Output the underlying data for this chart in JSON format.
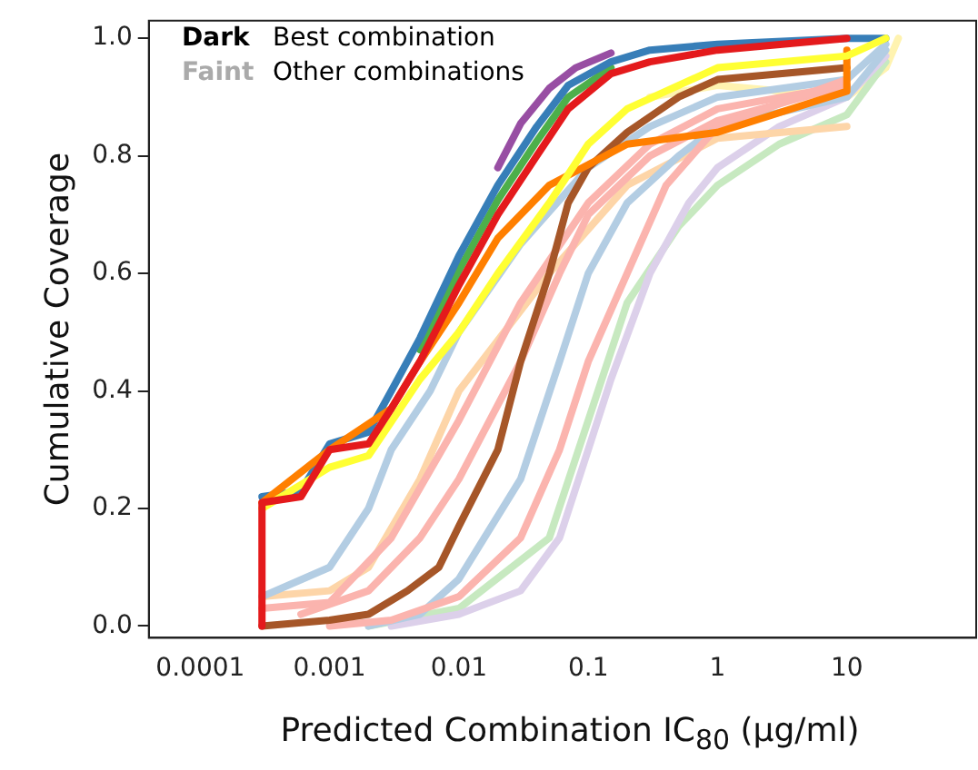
{
  "chart_data": {
    "type": "line",
    "xlabel": "Predicted Combination IC$_{80}$ (μg/ml)",
    "ylabel": "Cumulative Coverage",
    "log": "x",
    "xlim": [
      4e-05,
      100
    ],
    "ylim": [
      -0.02,
      1.03
    ],
    "xticks": [
      0.0001,
      0.001,
      0.01,
      0.1,
      1,
      10
    ],
    "yticks": [
      {
        "value": 0,
        "label": "0.0"
      },
      {
        "value": 0.2,
        "label": "0.2"
      },
      {
        "value": 0.4,
        "label": "0.4"
      },
      {
        "value": 0.6,
        "label": "0.6"
      },
      {
        "value": 0.8,
        "label": "0.8"
      },
      {
        "value": 1,
        "label": "1.0"
      }
    ],
    "grid": false,
    "legend": false,
    "marker": "none",
    "line_style": "solid",
    "annotations": [
      "Dark",
      "Best combination",
      "Faint",
      "Other combinations"
    ],
    "series": [
      {
        "color": "#fff3b0",
        "x": [
          0.3,
          1,
          10,
          20,
          25
        ],
        "values": [
          0.9,
          0.92,
          0.9,
          0.95,
          1.0
        ]
      },
      {
        "color": "#c7e9c0",
        "x": [
          0.002,
          0.01,
          0.05,
          0.1,
          0.2,
          0.5,
          1,
          3,
          10,
          20
        ],
        "values": [
          0,
          0.03,
          0.15,
          0.35,
          0.55,
          0.68,
          0.75,
          0.82,
          0.87,
          0.96
        ]
      },
      {
        "color": "#dcd0ea",
        "x": [
          0.003,
          0.01,
          0.03,
          0.06,
          0.1,
          0.15,
          0.3,
          0.6,
          1,
          3,
          10,
          20
        ],
        "values": [
          0,
          0.02,
          0.06,
          0.15,
          0.3,
          0.42,
          0.6,
          0.72,
          0.78,
          0.85,
          0.9,
          0.97
        ]
      },
      {
        "color": "#fdd5a8",
        "x": [
          0.0003,
          0.001,
          0.002,
          0.005,
          0.01,
          0.05,
          0.2,
          1,
          10
        ],
        "values": [
          0.05,
          0.06,
          0.1,
          0.25,
          0.4,
          0.6,
          0.75,
          0.83,
          0.85
        ]
      },
      {
        "color": "#b3cde3",
        "x": [
          0.0003,
          0.001,
          0.002,
          0.003,
          0.006,
          0.01,
          0.03,
          0.1,
          0.3,
          1,
          10,
          20
        ],
        "values": [
          0.05,
          0.1,
          0.2,
          0.3,
          0.4,
          0.5,
          0.65,
          0.78,
          0.85,
          0.9,
          0.93,
          0.99
        ]
      },
      {
        "color": "#b3cde3",
        "x": [
          0.002,
          0.005,
          0.01,
          0.03,
          0.06,
          0.1,
          0.2,
          0.5,
          1,
          10,
          20
        ],
        "values": [
          0,
          0.02,
          0.08,
          0.25,
          0.45,
          0.6,
          0.72,
          0.8,
          0.85,
          0.9,
          0.98
        ]
      },
      {
        "color": "#fbb4ae",
        "x": [
          0.0003,
          0.001,
          0.003,
          0.01,
          0.03,
          0.1,
          0.3,
          1,
          10
        ],
        "values": [
          0.03,
          0.04,
          0.15,
          0.35,
          0.55,
          0.72,
          0.82,
          0.88,
          0.92
        ]
      },
      {
        "color": "#fbb4ae",
        "x": [
          0.0006,
          0.002,
          0.005,
          0.01,
          0.03,
          0.06,
          0.1,
          0.3,
          1,
          10
        ],
        "values": [
          0.02,
          0.06,
          0.15,
          0.25,
          0.45,
          0.6,
          0.7,
          0.8,
          0.86,
          0.92
        ]
      },
      {
        "color": "#fbb4ae",
        "x": [
          0.001,
          0.003,
          0.01,
          0.03,
          0.06,
          0.1,
          0.2,
          0.4,
          1,
          10
        ],
        "values": [
          0,
          0.01,
          0.05,
          0.15,
          0.3,
          0.45,
          0.6,
          0.75,
          0.85,
          0.93
        ]
      },
      {
        "color": "#984ea3",
        "x": [
          0.02,
          0.03,
          0.05,
          0.08,
          0.15
        ],
        "values": [
          0.78,
          0.855,
          0.915,
          0.95,
          0.975
        ]
      },
      {
        "color": "#4daf4a",
        "x": [
          0.005,
          0.01,
          0.02,
          0.04,
          0.07,
          0.15
        ],
        "values": [
          0.47,
          0.605,
          0.725,
          0.825,
          0.9,
          0.95
        ]
      },
      {
        "color": "#377eb8",
        "x": [
          0.0003,
          0.0006,
          0.001,
          0.002,
          0.003,
          0.005,
          0.01,
          0.02,
          0.04,
          0.07,
          0.15,
          0.3,
          1,
          10,
          20
        ],
        "values": [
          0.22,
          0.23,
          0.31,
          0.33,
          0.4,
          0.49,
          0.63,
          0.75,
          0.85,
          0.92,
          0.96,
          0.98,
          0.99,
          1.0,
          1.0
        ]
      },
      {
        "color": "#a65628",
        "x": [
          0.0003,
          0.0003,
          0.001,
          0.002,
          0.004,
          0.007,
          0.01,
          0.02,
          0.03,
          0.05,
          0.07,
          0.1,
          0.2,
          0.5,
          1,
          10
        ],
        "values": [
          0.0,
          0.0,
          0.01,
          0.02,
          0.06,
          0.1,
          0.17,
          0.3,
          0.45,
          0.6,
          0.72,
          0.78,
          0.84,
          0.9,
          0.93,
          0.95
        ]
      },
      {
        "color": "#ff7f00",
        "x": [
          0.0003,
          0.001,
          0.003,
          0.005,
          0.01,
          0.02,
          0.05,
          0.2,
          1,
          10,
          10
        ],
        "values": [
          0.21,
          0.3,
          0.37,
          0.45,
          0.55,
          0.66,
          0.75,
          0.82,
          0.84,
          0.91,
          0.98
        ]
      },
      {
        "color": "#ffff33",
        "x": [
          0.0003,
          0.001,
          0.002,
          0.005,
          0.01,
          0.02,
          0.05,
          0.1,
          0.2,
          1,
          10,
          20
        ],
        "values": [
          0.2,
          0.27,
          0.29,
          0.42,
          0.5,
          0.6,
          0.72,
          0.82,
          0.88,
          0.95,
          0.97,
          1.0
        ]
      },
      {
        "color": "#e41a1c",
        "x": [
          0.0003,
          0.0003,
          0.0006,
          0.001,
          0.002,
          0.003,
          0.005,
          0.01,
          0.02,
          0.04,
          0.07,
          0.15,
          0.3,
          1,
          10
        ],
        "values": [
          0,
          0.21,
          0.22,
          0.3,
          0.31,
          0.37,
          0.45,
          0.58,
          0.7,
          0.8,
          0.88,
          0.94,
          0.96,
          0.98,
          1.0
        ]
      }
    ]
  }
}
